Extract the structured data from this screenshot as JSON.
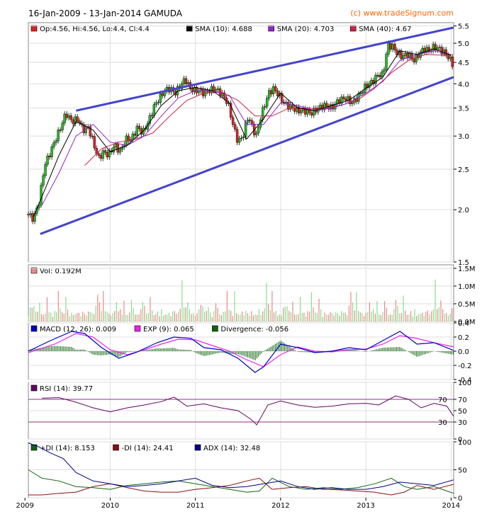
{
  "header": {
    "title": "16-Jan-2009 - 13-Jan-2014 GAMUDA",
    "copyright": "(c) www.tradeSignum.com"
  },
  "chart_data": [
    {
      "type": "candlestick",
      "panel": "price",
      "legend": [
        {
          "label": "Op:4.56, Hi:4.56, Lo:4.4, Cl:4.4",
          "color": "#dd2222"
        },
        {
          "label": "SMA (10): 4.688",
          "color": "#000000"
        },
        {
          "label": "SMA (20): 4.703",
          "color": "#9922cc"
        },
        {
          "label": "SMA (40): 4.67",
          "color": "#cc2244"
        }
      ],
      "yscale": "log",
      "ylim": [
        1.5,
        5.6
      ],
      "yticks": [
        1.5,
        2.0,
        2.5,
        3.0,
        3.5,
        4.0,
        4.5,
        5.0,
        5.5
      ],
      "ytick_labels": [
        "1.5",
        "2.0",
        "2.5",
        "3.0",
        "3.5",
        "4.0",
        "4.5",
        "5.0",
        "5.5"
      ],
      "xlim": [
        2009.04,
        2014.03
      ],
      "xticks": [
        2009,
        2010,
        2011,
        2012,
        2013,
        2014
      ],
      "xtick_labels": [
        "2009",
        "2010",
        "2011",
        "2012",
        "2013",
        "2014"
      ],
      "close_series": {
        "x": [
          2009.04,
          2009.1,
          2009.17,
          2009.23,
          2009.3,
          2009.36,
          2009.42,
          2009.48,
          2009.55,
          2009.62,
          2009.68,
          2009.74,
          2009.8,
          2009.86,
          2009.92,
          2009.98,
          2010.05,
          2010.12,
          2010.18,
          2010.25,
          2010.32,
          2010.38,
          2010.45,
          2010.52,
          2010.58,
          2010.64,
          2010.7,
          2010.76,
          2010.82,
          2010.88,
          2010.94,
          2011.0,
          2011.05,
          2011.1,
          2011.16,
          2011.22,
          2011.3,
          2011.38,
          2011.44,
          2011.5,
          2011.56,
          2011.62,
          2011.68,
          2011.72,
          2011.76,
          2011.8,
          2011.86,
          2011.92,
          2011.98,
          2012.04,
          2012.08,
          2012.14,
          2012.2,
          2012.28,
          2012.36,
          2012.44,
          2012.52,
          2012.6,
          2012.68,
          2012.76,
          2012.84,
          2012.92,
          2013.0,
          2013.08,
          2013.14,
          2013.2,
          2013.26,
          2013.32,
          2013.36,
          2013.42,
          2013.5,
          2013.56,
          2013.62,
          2013.68,
          2013.74,
          2013.8,
          2013.86,
          2013.92,
          2013.98,
          2014.03
        ],
        "close": [
          1.95,
          1.9,
          2.1,
          2.55,
          2.75,
          2.95,
          3.15,
          3.4,
          3.25,
          3.3,
          3.1,
          3.15,
          2.9,
          2.65,
          2.75,
          2.7,
          2.85,
          2.75,
          2.95,
          2.95,
          3.15,
          3.05,
          3.25,
          3.55,
          3.7,
          3.85,
          3.9,
          3.8,
          3.95,
          4.1,
          3.9,
          3.85,
          3.85,
          3.8,
          3.85,
          3.9,
          3.8,
          3.6,
          3.2,
          2.9,
          3.0,
          3.35,
          3.1,
          3.0,
          3.3,
          3.5,
          3.8,
          3.9,
          3.75,
          3.6,
          3.55,
          3.5,
          3.45,
          3.45,
          3.4,
          3.5,
          3.55,
          3.5,
          3.65,
          3.7,
          3.6,
          3.75,
          3.95,
          4.05,
          4.2,
          4.2,
          4.95,
          4.9,
          4.75,
          4.65,
          4.7,
          4.55,
          4.7,
          4.85,
          4.8,
          4.9,
          4.85,
          4.75,
          4.6,
          4.4
        ]
      },
      "sma10": {
        "x": [
          2009.1,
          2009.4,
          2009.6,
          2009.8,
          2010.0,
          2010.2,
          2010.4,
          2010.6,
          2010.8,
          2011.0,
          2011.2,
          2011.4,
          2011.6,
          2011.8,
          2012.0,
          2012.2,
          2012.4,
          2012.6,
          2012.8,
          2013.0,
          2013.2,
          2013.4,
          2013.6,
          2013.8,
          2014.0
        ],
        "y": [
          1.92,
          2.7,
          3.25,
          3.1,
          2.75,
          2.85,
          3.1,
          3.55,
          3.85,
          3.92,
          3.85,
          3.6,
          2.95,
          3.3,
          3.8,
          3.5,
          3.45,
          3.55,
          3.65,
          3.9,
          4.15,
          4.8,
          4.7,
          4.85,
          4.68
        ]
      },
      "sma20": {
        "x": [
          2009.2,
          2009.4,
          2009.6,
          2009.8,
          2010.0,
          2010.2,
          2010.4,
          2010.6,
          2010.8,
          2011.0,
          2011.2,
          2011.4,
          2011.6,
          2011.8,
          2012.0,
          2012.2,
          2012.4,
          2012.6,
          2012.8,
          2013.0,
          2013.2,
          2013.4,
          2013.6,
          2013.8,
          2014.0
        ],
        "y": [
          2.05,
          2.45,
          3.0,
          3.2,
          2.9,
          2.85,
          3.0,
          3.35,
          3.7,
          3.85,
          3.85,
          3.75,
          3.2,
          3.2,
          3.6,
          3.55,
          3.45,
          3.5,
          3.6,
          3.8,
          4.05,
          4.55,
          4.7,
          4.8,
          4.7
        ]
      },
      "sma40": {
        "x": [
          2009.7,
          2009.9,
          2010.1,
          2010.3,
          2010.5,
          2010.7,
          2010.9,
          2011.1,
          2011.3,
          2011.5,
          2011.7,
          2011.9,
          2012.1,
          2012.3,
          2012.5,
          2012.7,
          2012.9,
          2013.1,
          2013.3,
          2013.5,
          2013.7,
          2013.9,
          2014.0
        ],
        "y": [
          2.55,
          2.8,
          2.9,
          2.95,
          3.05,
          3.35,
          3.65,
          3.8,
          3.82,
          3.65,
          3.35,
          3.35,
          3.5,
          3.5,
          3.48,
          3.55,
          3.65,
          3.9,
          4.25,
          4.55,
          4.7,
          4.68,
          4.67
        ]
      },
      "trendlines": [
        {
          "x": [
            2009.6,
            2014.03
          ],
          "y": [
            3.45,
            5.45
          ]
        },
        {
          "x": [
            2009.18,
            2014.03
          ],
          "y": [
            1.75,
            4.15
          ]
        }
      ]
    },
    {
      "type": "bar",
      "panel": "volume",
      "legend": [
        {
          "label": "Vol: 0.192M",
          "color": "#ee8888"
        }
      ],
      "ylim": [
        0,
        1.6
      ],
      "yticks": [
        0,
        0.5,
        1.0,
        1.5
      ],
      "ytick_labels": [
        "0.0M",
        "0.5M",
        "1.0M",
        "1.5M"
      ],
      "up_color": "#88dd88",
      "down_color": "#ee8888",
      "values_sample": [
        0.25,
        0.4,
        0.55,
        0.45,
        0.35,
        0.3,
        0.6,
        0.25,
        0.2,
        0.3,
        0.7,
        0.4,
        0.25,
        0.2,
        0.3,
        0.35,
        0.9,
        0.45,
        0.3,
        0.25,
        0.85,
        0.35,
        0.2,
        0.25,
        0.3,
        0.2,
        0.35,
        0.25,
        0.2,
        0.3,
        0.25,
        0.2,
        0.3,
        0.35,
        0.25,
        0.3,
        0.45,
        1.2,
        0.55,
        0.4,
        0.9,
        0.35,
        0.3,
        0.25,
        0.2
      ]
    },
    {
      "type": "line",
      "panel": "macd",
      "legend": [
        {
          "label": "MACD (12, 26): 0.009",
          "color": "#0000cc"
        },
        {
          "label": "EXP (9): 0.065",
          "color": "#ee22ee"
        },
        {
          "label": "Divergence: -0.056",
          "color": "#116611"
        }
      ],
      "ylim": [
        -0.4,
        0.4
      ],
      "yticks": [
        0.4,
        0.2,
        0.0,
        -0.2,
        -0.4
      ],
      "ytick_labels": [
        "0.4",
        "0.2",
        "0.0",
        "-0.2",
        "-0.4"
      ],
      "macd": {
        "x": [
          2009.04,
          2009.3,
          2009.55,
          2009.7,
          2009.9,
          2010.1,
          2010.3,
          2010.55,
          2010.75,
          2010.95,
          2011.1,
          2011.3,
          2011.5,
          2011.7,
          2011.8,
          2012.0,
          2012.2,
          2012.4,
          2012.6,
          2012.8,
          2013.0,
          2013.2,
          2013.4,
          2013.6,
          2013.8,
          2014.03
        ],
        "y": [
          0.0,
          0.15,
          0.28,
          0.25,
          0.05,
          -0.1,
          -0.02,
          0.12,
          0.2,
          0.18,
          0.05,
          0.02,
          -0.1,
          -0.3,
          -0.22,
          0.1,
          0.05,
          -0.02,
          0.0,
          0.05,
          0.02,
          0.15,
          0.28,
          0.1,
          0.12,
          0.01
        ]
      },
      "exp": {
        "x": [
          2009.04,
          2009.35,
          2009.6,
          2009.8,
          2010.0,
          2010.2,
          2010.4,
          2010.6,
          2010.8,
          2011.0,
          2011.2,
          2011.4,
          2011.6,
          2011.8,
          2012.0,
          2012.2,
          2012.4,
          2012.6,
          2012.8,
          2013.0,
          2013.2,
          2013.4,
          2013.6,
          2013.8,
          2014.03
        ],
        "y": [
          -0.02,
          0.1,
          0.25,
          0.2,
          0.02,
          -0.05,
          0.02,
          0.1,
          0.17,
          0.16,
          0.08,
          0.0,
          -0.12,
          -0.22,
          -0.05,
          0.06,
          0.0,
          -0.01,
          0.02,
          0.03,
          0.1,
          0.22,
          0.18,
          0.12,
          0.06
        ]
      }
    },
    {
      "type": "line",
      "panel": "rsi",
      "legend": [
        {
          "label": "RSI (14): 39.77",
          "color": "#660066"
        }
      ],
      "ylim": [
        0,
        100
      ],
      "yticks": [
        100,
        70,
        50,
        30,
        0
      ],
      "ytick_labels": [
        "100",
        "70",
        "50",
        "30",
        "0"
      ],
      "guides": [
        70,
        30
      ],
      "guide_labels": [
        "70",
        "30"
      ],
      "guide_label_colors": [
        "#cc2222",
        "#4444ee"
      ],
      "rsi": {
        "x": [
          2009.2,
          2009.4,
          2009.6,
          2009.8,
          2010.0,
          2010.2,
          2010.4,
          2010.6,
          2010.75,
          2010.9,
          2011.1,
          2011.3,
          2011.5,
          2011.65,
          2011.72,
          2011.85,
          2012.0,
          2012.2,
          2012.4,
          2012.6,
          2012.8,
          2013.0,
          2013.15,
          2013.35,
          2013.5,
          2013.65,
          2013.8,
          2013.95,
          2014.03
        ],
        "y": [
          72,
          73,
          65,
          55,
          48,
          55,
          60,
          66,
          74,
          58,
          62,
          55,
          50,
          35,
          25,
          60,
          67,
          60,
          56,
          58,
          62,
          63,
          60,
          76,
          70,
          55,
          63,
          58,
          40
        ]
      }
    },
    {
      "type": "line",
      "panel": "dmi",
      "legend": [
        {
          "label": "+DI (14): 8.153",
          "color": "#116611"
        },
        {
          "label": "-DI (14): 24.41",
          "color": "#881111"
        },
        {
          "label": "ADX (14): 32.48",
          "color": "#000088"
        }
      ],
      "ylim": [
        0,
        100
      ],
      "yticks": [
        100,
        50,
        0
      ],
      "ytick_labels": [
        "100",
        "50",
        "0"
      ],
      "plus_di": {
        "x": [
          2009.04,
          2009.2,
          2009.4,
          2009.6,
          2009.8,
          2010.0,
          2010.2,
          2010.4,
          2010.6,
          2010.8,
          2011.0,
          2011.2,
          2011.4,
          2011.6,
          2011.75,
          2011.9,
          2012.1,
          2012.3,
          2012.5,
          2012.7,
          2012.9,
          2013.1,
          2013.3,
          2013.45,
          2013.6,
          2013.8,
          2014.03
        ],
        "y": [
          50,
          35,
          30,
          20,
          18,
          15,
          22,
          25,
          28,
          30,
          25,
          20,
          15,
          10,
          12,
          35,
          20,
          15,
          18,
          15,
          18,
          25,
          35,
          20,
          15,
          20,
          8
        ]
      },
      "minus_di": {
        "x": [
          2009.04,
          2009.2,
          2009.4,
          2009.6,
          2009.8,
          2010.0,
          2010.2,
          2010.4,
          2010.6,
          2010.8,
          2011.0,
          2011.2,
          2011.4,
          2011.6,
          2011.75,
          2011.9,
          2012.1,
          2012.3,
          2012.5,
          2012.7,
          2012.9,
          2013.1,
          2013.3,
          2013.45,
          2013.6,
          2013.8,
          2014.03
        ],
        "y": [
          5,
          5,
          8,
          10,
          20,
          25,
          18,
          12,
          10,
          10,
          15,
          18,
          22,
          30,
          35,
          15,
          18,
          20,
          15,
          14,
          12,
          10,
          5,
          10,
          22,
          15,
          24
        ]
      },
      "adx": {
        "x": [
          2009.04,
          2009.15,
          2009.3,
          2009.45,
          2009.6,
          2009.8,
          2010.0,
          2010.2,
          2010.4,
          2010.6,
          2010.8,
          2011.0,
          2011.2,
          2011.4,
          2011.6,
          2011.8,
          2012.0,
          2012.2,
          2012.4,
          2012.6,
          2012.8,
          2013.0,
          2013.2,
          2013.4,
          2013.6,
          2013.8,
          2014.03
        ],
        "y": [
          98,
          92,
          80,
          70,
          45,
          30,
          25,
          20,
          22,
          25,
          30,
          35,
          22,
          18,
          20,
          25,
          30,
          20,
          15,
          18,
          15,
          15,
          20,
          28,
          25,
          22,
          32
        ]
      }
    }
  ]
}
